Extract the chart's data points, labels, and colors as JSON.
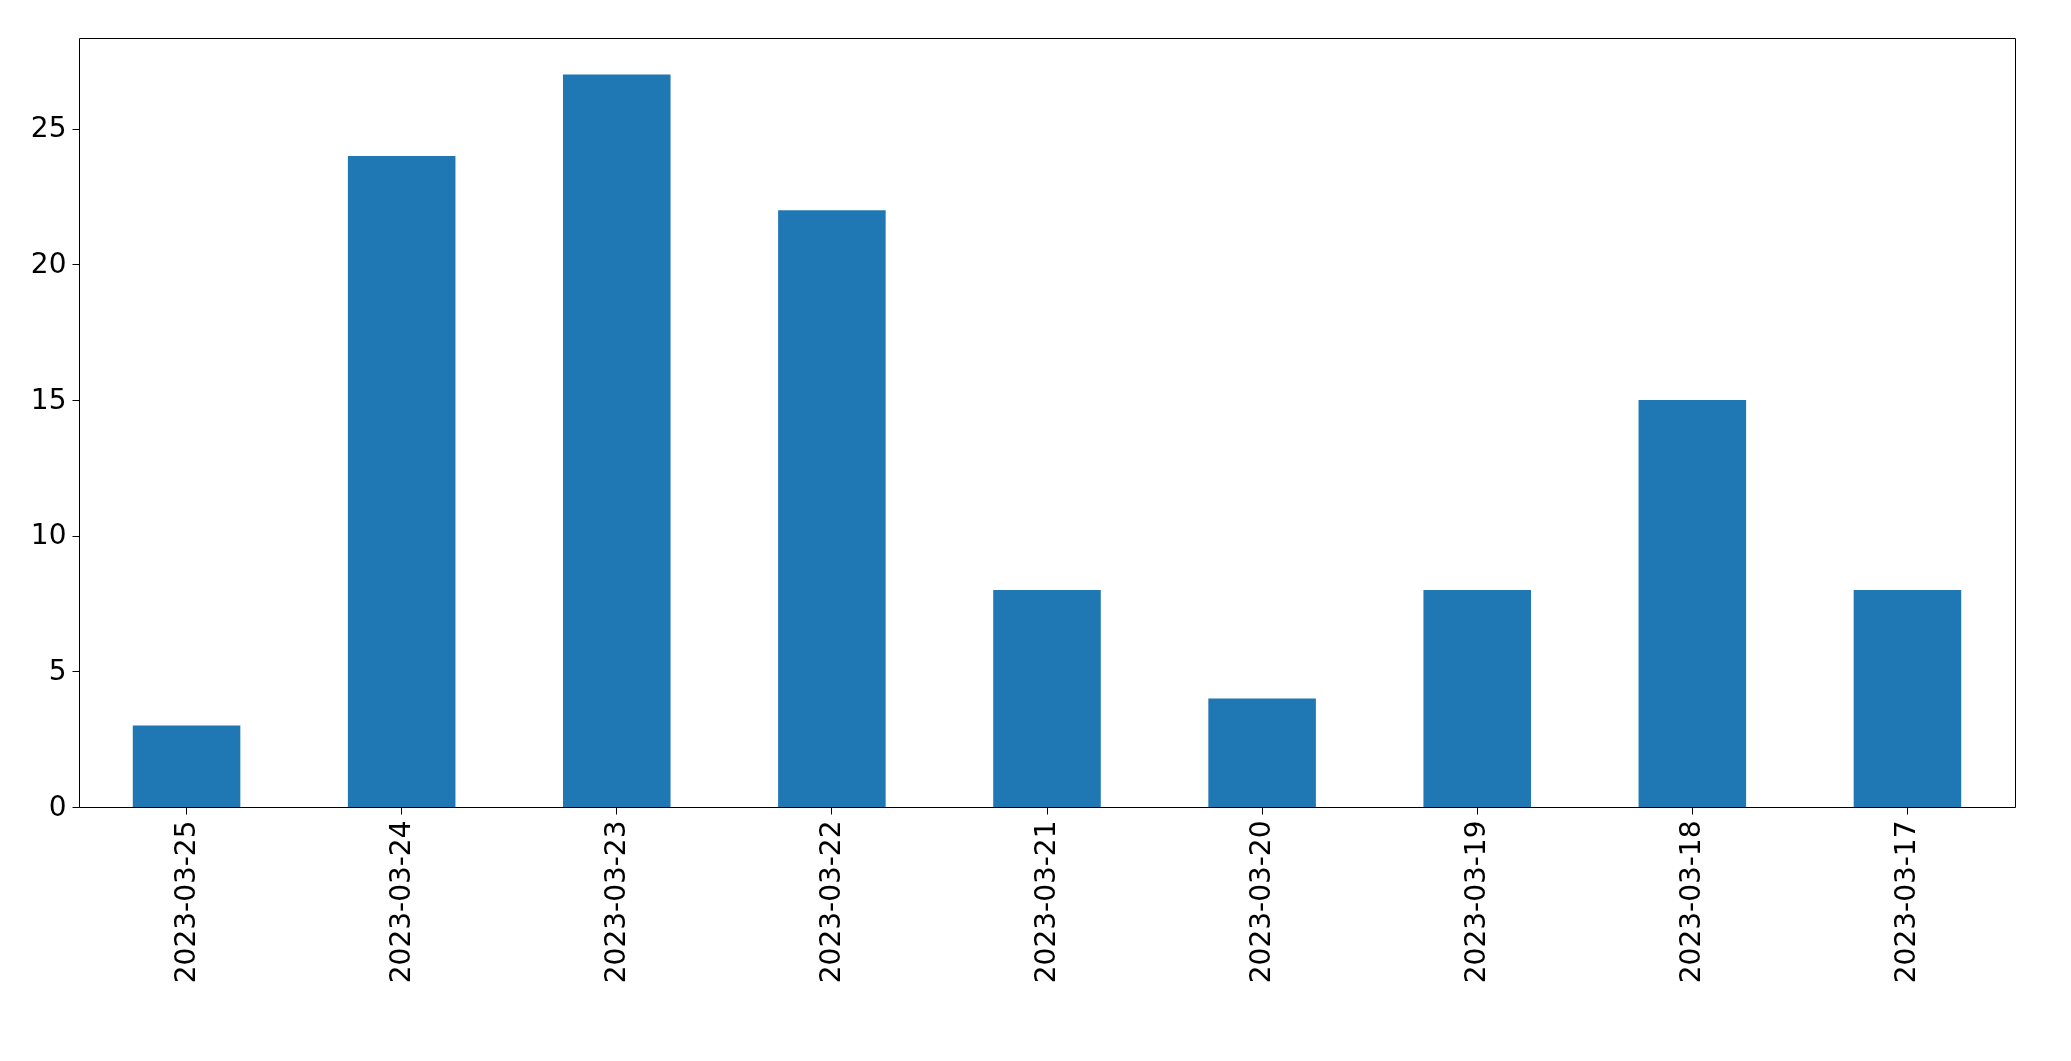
{
  "chart_data": {
    "type": "bar",
    "categories": [
      "2023-03-25",
      "2023-03-24",
      "2023-03-23",
      "2023-03-22",
      "2023-03-21",
      "2023-03-20",
      "2023-03-19",
      "2023-03-18",
      "2023-03-17"
    ],
    "values": [
      3,
      24,
      27,
      22,
      8,
      4,
      8,
      15,
      8
    ],
    "color": "#1f77b4",
    "ylim": [
      0,
      28.35
    ],
    "yticks": [
      0,
      5,
      10,
      15,
      20,
      25
    ],
    "grid": false
  }
}
